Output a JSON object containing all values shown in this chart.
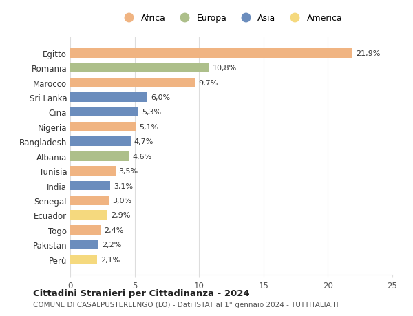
{
  "countries": [
    "Egitto",
    "Romania",
    "Marocco",
    "Sri Lanka",
    "Cina",
    "Nigeria",
    "Bangladesh",
    "Albania",
    "Tunisia",
    "India",
    "Senegal",
    "Ecuador",
    "Togo",
    "Pakistan",
    "Perù"
  ],
  "values": [
    21.9,
    10.8,
    9.7,
    6.0,
    5.3,
    5.1,
    4.7,
    4.6,
    3.5,
    3.1,
    3.0,
    2.9,
    2.4,
    2.2,
    2.1
  ],
  "labels": [
    "21,9%",
    "10,8%",
    "9,7%",
    "6,0%",
    "5,3%",
    "5,1%",
    "4,7%",
    "4,6%",
    "3,5%",
    "3,1%",
    "3,0%",
    "2,9%",
    "2,4%",
    "2,2%",
    "2,1%"
  ],
  "continents": [
    "Africa",
    "Europa",
    "Africa",
    "Asia",
    "Asia",
    "Africa",
    "Asia",
    "Europa",
    "Africa",
    "Asia",
    "Africa",
    "America",
    "Africa",
    "Asia",
    "America"
  ],
  "continent_colors": {
    "Africa": "#F0B482",
    "Europa": "#ADBF8A",
    "Asia": "#6B8DBD",
    "America": "#F5D97E"
  },
  "legend_order": [
    "Africa",
    "Europa",
    "Asia",
    "America"
  ],
  "xlim": [
    0,
    25
  ],
  "xticks": [
    0,
    5,
    10,
    15,
    20,
    25
  ],
  "title": "Cittadini Stranieri per Cittadinanza - 2024",
  "subtitle": "COMUNE DI CASALPUSTERLENGO (LO) - Dati ISTAT al 1° gennaio 2024 - TUTTITALIA.IT",
  "background_color": "#ffffff",
  "grid_color": "#dddddd",
  "bar_height": 0.65
}
